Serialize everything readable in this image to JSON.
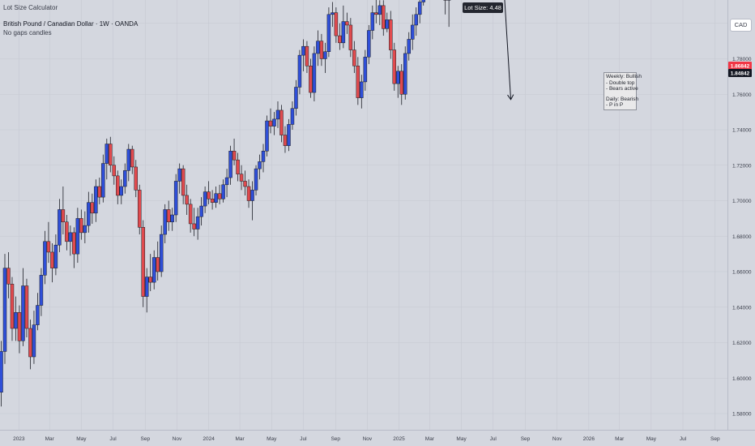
{
  "header": {
    "indicator": "Lot Size Calculator",
    "title": "British Pound / Canadian Dollar · 1W · OANDA",
    "subtitle": "No gaps candles"
  },
  "lot_size_label": "Lot Size: 4.48",
  "currency_button": "CAD",
  "annotation": {
    "weekly": "Weekly: Bullish",
    "weekly_items": [
      "- Double top",
      "- Bears active"
    ],
    "daily": "Daily: Bearish",
    "daily_items": [
      "- P in P"
    ]
  },
  "price_tags": {
    "red": "1.86842",
    "black": "1.84842"
  },
  "colors": {
    "background": "#d4d7df",
    "up": "#2f4fd8",
    "down": "#e04a4e",
    "wick": "#1d1f27",
    "zone": "#7db7ee",
    "price_tag_red": "#f23645",
    "price_tag_black": "#131722"
  },
  "chart_data": {
    "type": "candlestick",
    "symbol": "GBPCAD",
    "timeframe": "1W",
    "y_axis": {
      "ticks": [
        1.58,
        1.6,
        1.62,
        1.64,
        1.66,
        1.68,
        1.7,
        1.72,
        1.74,
        1.76,
        1.78,
        1.8,
        1.82,
        1.84,
        1.86,
        1.88
      ],
      "tick_labels": [
        "1.58000",
        "1.60000",
        "1.62000",
        "1.64000",
        "1.66000",
        "1.68000",
        "1.70000",
        "1.72000",
        "1.74000",
        "1.76000",
        "1.78000",
        "1.80000",
        "1.82000",
        "1.84000",
        "1.86000",
        "1.88000"
      ]
    },
    "x_axis": {
      "labels": [
        "2023",
        "Mar",
        "May",
        "Jul",
        "Sep",
        "Nov",
        "2024",
        "Mar",
        "May",
        "Jul",
        "Sep",
        "Nov",
        "2025",
        "Mar",
        "May",
        "Jul",
        "Sep",
        "Nov",
        "2026",
        "Mar",
        "May",
        "Jul",
        "Sep"
      ],
      "dates": [
        "2023-01-01",
        "2023-03-01",
        "2023-05-01",
        "2023-07-01",
        "2023-09-01",
        "2023-11-01",
        "2024-01-01",
        "2024-03-01",
        "2024-05-01",
        "2024-07-01",
        "2024-09-01",
        "2024-11-01",
        "2025-01-01",
        "2025-03-01",
        "2025-05-01",
        "2025-07-01",
        "2025-09-01",
        "2025-11-01",
        "2026-01-01",
        "2026-03-01",
        "2026-05-01",
        "2026-07-01",
        "2026-09-01"
      ],
      "range": [
        "2022-11-28",
        "2026-09-20"
      ]
    },
    "candles": [
      {
        "t": "2022-11-28",
        "o": 1.592,
        "h": 1.621,
        "l": 1.584,
        "c": 1.615
      },
      {
        "t": "2022-12-05",
        "o": 1.615,
        "h": 1.67,
        "l": 1.608,
        "c": 1.662
      },
      {
        "t": "2022-12-12",
        "o": 1.662,
        "h": 1.671,
        "l": 1.645,
        "c": 1.653
      },
      {
        "t": "2022-12-19",
        "o": 1.653,
        "h": 1.657,
        "l": 1.621,
        "c": 1.628
      },
      {
        "t": "2022-12-26",
        "o": 1.628,
        "h": 1.646,
        "l": 1.621,
        "c": 1.637
      },
      {
        "t": "2023-01-02",
        "o": 1.637,
        "h": 1.641,
        "l": 1.614,
        "c": 1.621
      },
      {
        "t": "2023-01-09",
        "o": 1.621,
        "h": 1.662,
        "l": 1.618,
        "c": 1.652
      },
      {
        "t": "2023-01-16",
        "o": 1.652,
        "h": 1.656,
        "l": 1.623,
        "c": 1.628
      },
      {
        "t": "2023-01-23",
        "o": 1.628,
        "h": 1.633,
        "l": 1.605,
        "c": 1.612
      },
      {
        "t": "2023-01-30",
        "o": 1.612,
        "h": 1.638,
        "l": 1.608,
        "c": 1.63
      },
      {
        "t": "2023-02-06",
        "o": 1.63,
        "h": 1.648,
        "l": 1.627,
        "c": 1.641
      },
      {
        "t": "2023-02-13",
        "o": 1.641,
        "h": 1.662,
        "l": 1.635,
        "c": 1.658
      },
      {
        "t": "2023-02-20",
        "o": 1.658,
        "h": 1.683,
        "l": 1.653,
        "c": 1.677
      },
      {
        "t": "2023-02-27",
        "o": 1.677,
        "h": 1.688,
        "l": 1.665,
        "c": 1.671
      },
      {
        "t": "2023-03-06",
        "o": 1.671,
        "h": 1.676,
        "l": 1.654,
        "c": 1.662
      },
      {
        "t": "2023-03-13",
        "o": 1.662,
        "h": 1.681,
        "l": 1.658,
        "c": 1.675
      },
      {
        "t": "2023-03-20",
        "o": 1.675,
        "h": 1.701,
        "l": 1.671,
        "c": 1.695
      },
      {
        "t": "2023-03-27",
        "o": 1.695,
        "h": 1.708,
        "l": 1.681,
        "c": 1.688
      },
      {
        "t": "2023-04-03",
        "o": 1.688,
        "h": 1.692,
        "l": 1.672,
        "c": 1.677
      },
      {
        "t": "2023-04-10",
        "o": 1.677,
        "h": 1.686,
        "l": 1.669,
        "c": 1.682
      },
      {
        "t": "2023-04-17",
        "o": 1.682,
        "h": 1.685,
        "l": 1.662,
        "c": 1.67
      },
      {
        "t": "2023-04-24",
        "o": 1.67,
        "h": 1.696,
        "l": 1.665,
        "c": 1.69
      },
      {
        "t": "2023-05-01",
        "o": 1.69,
        "h": 1.695,
        "l": 1.678,
        "c": 1.682
      },
      {
        "t": "2023-05-08",
        "o": 1.682,
        "h": 1.694,
        "l": 1.676,
        "c": 1.686
      },
      {
        "t": "2023-05-15",
        "o": 1.686,
        "h": 1.705,
        "l": 1.682,
        "c": 1.699
      },
      {
        "t": "2023-05-22",
        "o": 1.699,
        "h": 1.704,
        "l": 1.687,
        "c": 1.693
      },
      {
        "t": "2023-05-29",
        "o": 1.693,
        "h": 1.712,
        "l": 1.688,
        "c": 1.708
      },
      {
        "t": "2023-06-05",
        "o": 1.708,
        "h": 1.713,
        "l": 1.698,
        "c": 1.702
      },
      {
        "t": "2023-06-12",
        "o": 1.702,
        "h": 1.726,
        "l": 1.699,
        "c": 1.721
      },
      {
        "t": "2023-06-19",
        "o": 1.721,
        "h": 1.735,
        "l": 1.712,
        "c": 1.732
      },
      {
        "t": "2023-06-26",
        "o": 1.732,
        "h": 1.736,
        "l": 1.716,
        "c": 1.72
      },
      {
        "t": "2023-07-03",
        "o": 1.72,
        "h": 1.725,
        "l": 1.709,
        "c": 1.714
      },
      {
        "t": "2023-07-10",
        "o": 1.714,
        "h": 1.717,
        "l": 1.698,
        "c": 1.703
      },
      {
        "t": "2023-07-17",
        "o": 1.703,
        "h": 1.712,
        "l": 1.698,
        "c": 1.708
      },
      {
        "t": "2023-07-24",
        "o": 1.708,
        "h": 1.721,
        "l": 1.704,
        "c": 1.717
      },
      {
        "t": "2023-07-31",
        "o": 1.717,
        "h": 1.732,
        "l": 1.711,
        "c": 1.729
      },
      {
        "t": "2023-08-07",
        "o": 1.729,
        "h": 1.731,
        "l": 1.715,
        "c": 1.719
      },
      {
        "t": "2023-08-14",
        "o": 1.719,
        "h": 1.723,
        "l": 1.702,
        "c": 1.706
      },
      {
        "t": "2023-08-21",
        "o": 1.706,
        "h": 1.709,
        "l": 1.681,
        "c": 1.685
      },
      {
        "t": "2023-08-28",
        "o": 1.685,
        "h": 1.689,
        "l": 1.64,
        "c": 1.646
      },
      {
        "t": "2023-09-04",
        "o": 1.646,
        "h": 1.662,
        "l": 1.637,
        "c": 1.657
      },
      {
        "t": "2023-09-11",
        "o": 1.657,
        "h": 1.67,
        "l": 1.649,
        "c": 1.654
      },
      {
        "t": "2023-09-18",
        "o": 1.654,
        "h": 1.672,
        "l": 1.65,
        "c": 1.668
      },
      {
        "t": "2023-09-25",
        "o": 1.668,
        "h": 1.677,
        "l": 1.655,
        "c": 1.66
      },
      {
        "t": "2023-10-02",
        "o": 1.66,
        "h": 1.686,
        "l": 1.657,
        "c": 1.681
      },
      {
        "t": "2023-10-09",
        "o": 1.681,
        "h": 1.698,
        "l": 1.676,
        "c": 1.695
      },
      {
        "t": "2023-10-16",
        "o": 1.695,
        "h": 1.7,
        "l": 1.683,
        "c": 1.688
      },
      {
        "t": "2023-10-23",
        "o": 1.688,
        "h": 1.696,
        "l": 1.683,
        "c": 1.692
      },
      {
        "t": "2023-10-30",
        "o": 1.692,
        "h": 1.715,
        "l": 1.688,
        "c": 1.711
      },
      {
        "t": "2023-11-06",
        "o": 1.711,
        "h": 1.721,
        "l": 1.704,
        "c": 1.718
      },
      {
        "t": "2023-11-13",
        "o": 1.718,
        "h": 1.72,
        "l": 1.698,
        "c": 1.703
      },
      {
        "t": "2023-11-20",
        "o": 1.703,
        "h": 1.709,
        "l": 1.692,
        "c": 1.698
      },
      {
        "t": "2023-11-27",
        "o": 1.698,
        "h": 1.701,
        "l": 1.682,
        "c": 1.687
      },
      {
        "t": "2023-12-04",
        "o": 1.687,
        "h": 1.696,
        "l": 1.68,
        "c": 1.684
      },
      {
        "t": "2023-12-11",
        "o": 1.684,
        "h": 1.696,
        "l": 1.678,
        "c": 1.691
      },
      {
        "t": "2023-12-18",
        "o": 1.691,
        "h": 1.702,
        "l": 1.686,
        "c": 1.697
      },
      {
        "t": "2023-12-25",
        "o": 1.697,
        "h": 1.708,
        "l": 1.693,
        "c": 1.705
      },
      {
        "t": "2024-01-01",
        "o": 1.705,
        "h": 1.711,
        "l": 1.698,
        "c": 1.701
      },
      {
        "t": "2024-01-08",
        "o": 1.701,
        "h": 1.706,
        "l": 1.695,
        "c": 1.699
      },
      {
        "t": "2024-01-15",
        "o": 1.699,
        "h": 1.708,
        "l": 1.696,
        "c": 1.704
      },
      {
        "t": "2024-01-22",
        "o": 1.704,
        "h": 1.709,
        "l": 1.698,
        "c": 1.701
      },
      {
        "t": "2024-01-29",
        "o": 1.701,
        "h": 1.712,
        "l": 1.699,
        "c": 1.709
      },
      {
        "t": "2024-02-05",
        "o": 1.709,
        "h": 1.718,
        "l": 1.702,
        "c": 1.713
      },
      {
        "t": "2024-02-12",
        "o": 1.713,
        "h": 1.731,
        "l": 1.709,
        "c": 1.728
      },
      {
        "t": "2024-02-19",
        "o": 1.728,
        "h": 1.735,
        "l": 1.72,
        "c": 1.723
      },
      {
        "t": "2024-02-26",
        "o": 1.723,
        "h": 1.727,
        "l": 1.711,
        "c": 1.715
      },
      {
        "t": "2024-03-04",
        "o": 1.715,
        "h": 1.72,
        "l": 1.706,
        "c": 1.711
      },
      {
        "t": "2024-03-11",
        "o": 1.711,
        "h": 1.717,
        "l": 1.703,
        "c": 1.708
      },
      {
        "t": "2024-03-18",
        "o": 1.708,
        "h": 1.712,
        "l": 1.696,
        "c": 1.7
      },
      {
        "t": "2024-03-25",
        "o": 1.7,
        "h": 1.711,
        "l": 1.689,
        "c": 1.706
      },
      {
        "t": "2024-04-01",
        "o": 1.706,
        "h": 1.72,
        "l": 1.703,
        "c": 1.718
      },
      {
        "t": "2024-04-08",
        "o": 1.718,
        "h": 1.726,
        "l": 1.712,
        "c": 1.722
      },
      {
        "t": "2024-04-15",
        "o": 1.722,
        "h": 1.732,
        "l": 1.716,
        "c": 1.728
      },
      {
        "t": "2024-04-22",
        "o": 1.728,
        "h": 1.748,
        "l": 1.725,
        "c": 1.745
      },
      {
        "t": "2024-04-29",
        "o": 1.745,
        "h": 1.752,
        "l": 1.738,
        "c": 1.742
      },
      {
        "t": "2024-05-06",
        "o": 1.742,
        "h": 1.75,
        "l": 1.737,
        "c": 1.746
      },
      {
        "t": "2024-05-13",
        "o": 1.746,
        "h": 1.756,
        "l": 1.741,
        "c": 1.751
      },
      {
        "t": "2024-05-20",
        "o": 1.751,
        "h": 1.754,
        "l": 1.733,
        "c": 1.737
      },
      {
        "t": "2024-05-27",
        "o": 1.737,
        "h": 1.742,
        "l": 1.727,
        "c": 1.731
      },
      {
        "t": "2024-06-03",
        "o": 1.731,
        "h": 1.746,
        "l": 1.728,
        "c": 1.743
      },
      {
        "t": "2024-06-10",
        "o": 1.743,
        "h": 1.756,
        "l": 1.74,
        "c": 1.752
      },
      {
        "t": "2024-06-17",
        "o": 1.752,
        "h": 1.768,
        "l": 1.748,
        "c": 1.764
      },
      {
        "t": "2024-06-24",
        "o": 1.764,
        "h": 1.785,
        "l": 1.76,
        "c": 1.782
      },
      {
        "t": "2024-07-01",
        "o": 1.782,
        "h": 1.791,
        "l": 1.773,
        "c": 1.787
      },
      {
        "t": "2024-07-08",
        "o": 1.787,
        "h": 1.79,
        "l": 1.772,
        "c": 1.776
      },
      {
        "t": "2024-07-15",
        "o": 1.776,
        "h": 1.78,
        "l": 1.758,
        "c": 1.761
      },
      {
        "t": "2024-07-22",
        "o": 1.761,
        "h": 1.787,
        "l": 1.756,
        "c": 1.783
      },
      {
        "t": "2024-07-29",
        "o": 1.783,
        "h": 1.796,
        "l": 1.776,
        "c": 1.79
      },
      {
        "t": "2024-08-05",
        "o": 1.79,
        "h": 1.794,
        "l": 1.776,
        "c": 1.78
      },
      {
        "t": "2024-08-12",
        "o": 1.78,
        "h": 1.789,
        "l": 1.772,
        "c": 1.784
      },
      {
        "t": "2024-08-19",
        "o": 1.784,
        "h": 1.809,
        "l": 1.781,
        "c": 1.805
      },
      {
        "t": "2024-08-26",
        "o": 1.805,
        "h": 1.812,
        "l": 1.798,
        "c": 1.806
      },
      {
        "t": "2024-09-02",
        "o": 1.806,
        "h": 1.809,
        "l": 1.789,
        "c": 1.793
      },
      {
        "t": "2024-09-09",
        "o": 1.793,
        "h": 1.8,
        "l": 1.785,
        "c": 1.789
      },
      {
        "t": "2024-09-16",
        "o": 1.789,
        "h": 1.81,
        "l": 1.786,
        "c": 1.801
      },
      {
        "t": "2024-09-23",
        "o": 1.801,
        "h": 1.806,
        "l": 1.794,
        "c": 1.799
      },
      {
        "t": "2024-09-30",
        "o": 1.799,
        "h": 1.803,
        "l": 1.781,
        "c": 1.785
      },
      {
        "t": "2024-10-07",
        "o": 1.785,
        "h": 1.79,
        "l": 1.772,
        "c": 1.776
      },
      {
        "t": "2024-10-14",
        "o": 1.776,
        "h": 1.781,
        "l": 1.754,
        "c": 1.758
      },
      {
        "t": "2024-10-21",
        "o": 1.758,
        "h": 1.771,
        "l": 1.752,
        "c": 1.767
      },
      {
        "t": "2024-10-28",
        "o": 1.767,
        "h": 1.785,
        "l": 1.762,
        "c": 1.781
      },
      {
        "t": "2024-11-04",
        "o": 1.781,
        "h": 1.799,
        "l": 1.777,
        "c": 1.796
      },
      {
        "t": "2024-11-11",
        "o": 1.796,
        "h": 1.81,
        "l": 1.791,
        "c": 1.806
      },
      {
        "t": "2024-11-18",
        "o": 1.806,
        "h": 1.814,
        "l": 1.8,
        "c": 1.805
      },
      {
        "t": "2024-11-25",
        "o": 1.805,
        "h": 1.813,
        "l": 1.799,
        "c": 1.81
      },
      {
        "t": "2024-12-02",
        "o": 1.81,
        "h": 1.813,
        "l": 1.793,
        "c": 1.797
      },
      {
        "t": "2024-12-09",
        "o": 1.797,
        "h": 1.806,
        "l": 1.795,
        "c": 1.802
      },
      {
        "t": "2024-12-16",
        "o": 1.802,
        "h": 1.807,
        "l": 1.78,
        "c": 1.785
      },
      {
        "t": "2024-12-23",
        "o": 1.785,
        "h": 1.789,
        "l": 1.762,
        "c": 1.766
      },
      {
        "t": "2024-12-30",
        "o": 1.766,
        "h": 1.776,
        "l": 1.758,
        "c": 1.773
      },
      {
        "t": "2025-01-06",
        "o": 1.773,
        "h": 1.777,
        "l": 1.754,
        "c": 1.76
      },
      {
        "t": "2025-01-13",
        "o": 1.76,
        "h": 1.787,
        "l": 1.757,
        "c": 1.783
      },
      {
        "t": "2025-01-20",
        "o": 1.783,
        "h": 1.795,
        "l": 1.779,
        "c": 1.791
      },
      {
        "t": "2025-01-27",
        "o": 1.791,
        "h": 1.805,
        "l": 1.785,
        "c": 1.799
      },
      {
        "t": "2025-02-03",
        "o": 1.799,
        "h": 1.809,
        "l": 1.793,
        "c": 1.805
      },
      {
        "t": "2025-02-10",
        "o": 1.805,
        "h": 1.818,
        "l": 1.8,
        "c": 1.812
      },
      {
        "t": "2025-02-17",
        "o": 1.812,
        "h": 1.845,
        "l": 1.81,
        "c": 1.84
      },
      {
        "t": "2025-02-24",
        "o": 1.84,
        "h": 1.859,
        "l": 1.835,
        "c": 1.856
      },
      {
        "t": "2025-03-03",
        "o": 1.856,
        "h": 1.878,
        "l": 1.847,
        "c": 1.852
      },
      {
        "t": "2025-03-10",
        "o": 1.852,
        "h": 1.857,
        "l": 1.84,
        "c": 1.846
      },
      {
        "t": "2025-03-17",
        "o": 1.846,
        "h": 1.856,
        "l": 1.84,
        "c": 1.85
      },
      {
        "t": "2025-03-24",
        "o": 1.85,
        "h": 1.856,
        "l": 1.838,
        "c": 1.843
      },
      {
        "t": "2025-03-31",
        "o": 1.843,
        "h": 1.848,
        "l": 1.805,
        "c": 1.813
      },
      {
        "t": "2025-04-07",
        "o": 1.813,
        "h": 1.829,
        "l": 1.798,
        "c": 1.825
      },
      {
        "t": "2025-04-14",
        "o": 1.825,
        "h": 1.842,
        "l": 1.82,
        "c": 1.839
      },
      {
        "t": "2025-04-21",
        "o": 1.839,
        "h": 1.847,
        "l": 1.829,
        "c": 1.833
      },
      {
        "t": "2025-04-28",
        "o": 1.833,
        "h": 1.852,
        "l": 1.829,
        "c": 1.846
      },
      {
        "t": "2025-05-05",
        "o": 1.846,
        "h": 1.852,
        "l": 1.83,
        "c": 1.836
      },
      {
        "t": "2025-05-12",
        "o": 1.836,
        "h": 1.864,
        "l": 1.833,
        "c": 1.858
      },
      {
        "t": "2025-05-19",
        "o": 1.858,
        "h": 1.866,
        "l": 1.849,
        "c": 1.855
      },
      {
        "t": "2025-05-26",
        "o": 1.855,
        "h": 1.865,
        "l": 1.852,
        "c": 1.86
      },
      {
        "t": "2025-06-02",
        "o": 1.86,
        "h": 1.862,
        "l": 1.847,
        "c": 1.8484
      }
    ],
    "resistance_zone": {
      "from": "2025-02-24",
      "to": "2025-07-28",
      "low": 1.858,
      "high": 1.878
    },
    "neckline": {
      "from": "2025-03-03",
      "to": "2025-06-16",
      "low": 1.8565,
      "high": 1.86
    },
    "arrow": {
      "from_t": "2025-07-14",
      "from_p": 1.857,
      "to_t": "2025-08-04",
      "to_p": 1.757
    },
    "current_price": 1.84842
  }
}
